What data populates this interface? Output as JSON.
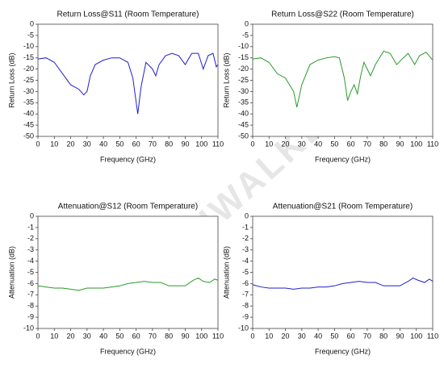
{
  "watermark": "AUMIWALKER",
  "chart_data": [
    {
      "type": "line",
      "title": "Return Loss@S11 (Room Temperature)",
      "x_label": "Frequency (GHz)",
      "y_label": "Return Loss (dB)",
      "x": [
        0,
        5,
        10,
        15,
        20,
        25,
        28,
        30,
        32,
        35,
        40,
        45,
        50,
        55,
        58,
        61,
        63,
        66,
        70,
        72,
        74,
        78,
        82,
        86,
        90,
        94,
        98,
        101,
        104,
        107,
        109,
        110
      ],
      "series": [
        {
          "color": "#1f1fd0",
          "values": [
            -15.5,
            -15,
            -17,
            -22,
            -27,
            -29,
            -31.5,
            -30,
            -23,
            -18,
            -16,
            -15,
            -15,
            -17,
            -24,
            -40,
            -28,
            -17,
            -20,
            -23,
            -18,
            -14,
            -13,
            -14,
            -18,
            -13,
            -13,
            -20,
            -14,
            -13,
            -19,
            -18
          ]
        }
      ],
      "xlim": [
        0,
        110
      ],
      "ylim": [
        -50,
        0
      ],
      "xticks": [
        0,
        10,
        20,
        30,
        40,
        50,
        60,
        70,
        80,
        90,
        100,
        110
      ],
      "yticks": [
        0,
        -5,
        -10,
        -15,
        -20,
        -25,
        -30,
        -35,
        -40,
        -45,
        -50
      ],
      "grid": false
    },
    {
      "type": "line",
      "title": "Return Loss@S22 (Room Temperature)",
      "x_label": "Frequency (GHz)",
      "y_label": "Return Loss (dB)",
      "x": [
        0,
        5,
        10,
        15,
        20,
        25,
        27,
        30,
        35,
        40,
        45,
        50,
        53,
        56,
        58,
        60,
        62,
        64,
        66,
        68,
        70,
        72,
        75,
        80,
        84,
        88,
        92,
        95,
        99,
        102,
        106,
        110
      ],
      "series": [
        {
          "color": "#2a9a2a",
          "values": [
            -15.5,
            -15,
            -17,
            -22,
            -24,
            -30,
            -37,
            -27,
            -18,
            -16,
            -15,
            -14.5,
            -15,
            -24,
            -34,
            -30,
            -27,
            -31,
            -23,
            -17,
            -20,
            -23,
            -18,
            -12,
            -13,
            -18,
            -15,
            -13,
            -18,
            -14,
            -12.5,
            -16
          ]
        }
      ],
      "xlim": [
        0,
        110
      ],
      "ylim": [
        -50,
        0
      ],
      "xticks": [
        0,
        10,
        20,
        30,
        40,
        50,
        60,
        70,
        80,
        90,
        100,
        110
      ],
      "yticks": [
        0,
        -5,
        -10,
        -15,
        -20,
        -25,
        -30,
        -35,
        -40,
        -45,
        -50
      ],
      "grid": false
    },
    {
      "type": "line",
      "title": "Attenuation@S12 (Room Temperature)",
      "x_label": "Frequency (GHz)",
      "y_label": "Attenuation (dB)",
      "x": [
        0,
        5,
        10,
        15,
        20,
        25,
        30,
        35,
        40,
        45,
        50,
        55,
        60,
        65,
        70,
        75,
        80,
        85,
        90,
        95,
        98,
        101,
        105,
        108,
        110
      ],
      "series": [
        {
          "color": "#2a9a2a",
          "values": [
            -6.2,
            -6.3,
            -6.4,
            -6.4,
            -6.5,
            -6.6,
            -6.4,
            -6.4,
            -6.4,
            -6.3,
            -6.2,
            -6.0,
            -5.9,
            -5.8,
            -5.9,
            -5.9,
            -6.2,
            -6.2,
            -6.2,
            -5.7,
            -5.5,
            -5.8,
            -5.9,
            -5.6,
            -5.7
          ]
        }
      ],
      "xlim": [
        0,
        110
      ],
      "ylim": [
        -10,
        0
      ],
      "xticks": [
        0,
        10,
        20,
        30,
        40,
        50,
        60,
        70,
        80,
        90,
        100,
        110
      ],
      "yticks": [
        0,
        -1,
        -2,
        -3,
        -4,
        -5,
        -6,
        -7,
        -8,
        -9,
        -10
      ],
      "grid": false
    },
    {
      "type": "line",
      "title": "Attenuation@S21 (Room Temperature)",
      "x_label": "Frequency (GHz)",
      "y_label": "Attenuation (dB)",
      "x": [
        0,
        5,
        10,
        15,
        20,
        25,
        30,
        35,
        40,
        45,
        50,
        55,
        60,
        65,
        70,
        75,
        80,
        85,
        90,
        95,
        98,
        101,
        105,
        108,
        110
      ],
      "series": [
        {
          "color": "#1f1fd0",
          "values": [
            -6.1,
            -6.3,
            -6.4,
            -6.4,
            -6.4,
            -6.5,
            -6.4,
            -6.4,
            -6.3,
            -6.3,
            -6.2,
            -6.0,
            -5.9,
            -5.8,
            -5.9,
            -5.9,
            -6.2,
            -6.2,
            -6.2,
            -5.8,
            -5.5,
            -5.7,
            -5.9,
            -5.6,
            -5.8
          ]
        }
      ],
      "xlim": [
        0,
        110
      ],
      "ylim": [
        -10,
        0
      ],
      "xticks": [
        0,
        10,
        20,
        30,
        40,
        50,
        60,
        70,
        80,
        90,
        100,
        110
      ],
      "yticks": [
        0,
        -1,
        -2,
        -3,
        -4,
        -5,
        -6,
        -7,
        -8,
        -9,
        -10
      ],
      "grid": false
    }
  ]
}
